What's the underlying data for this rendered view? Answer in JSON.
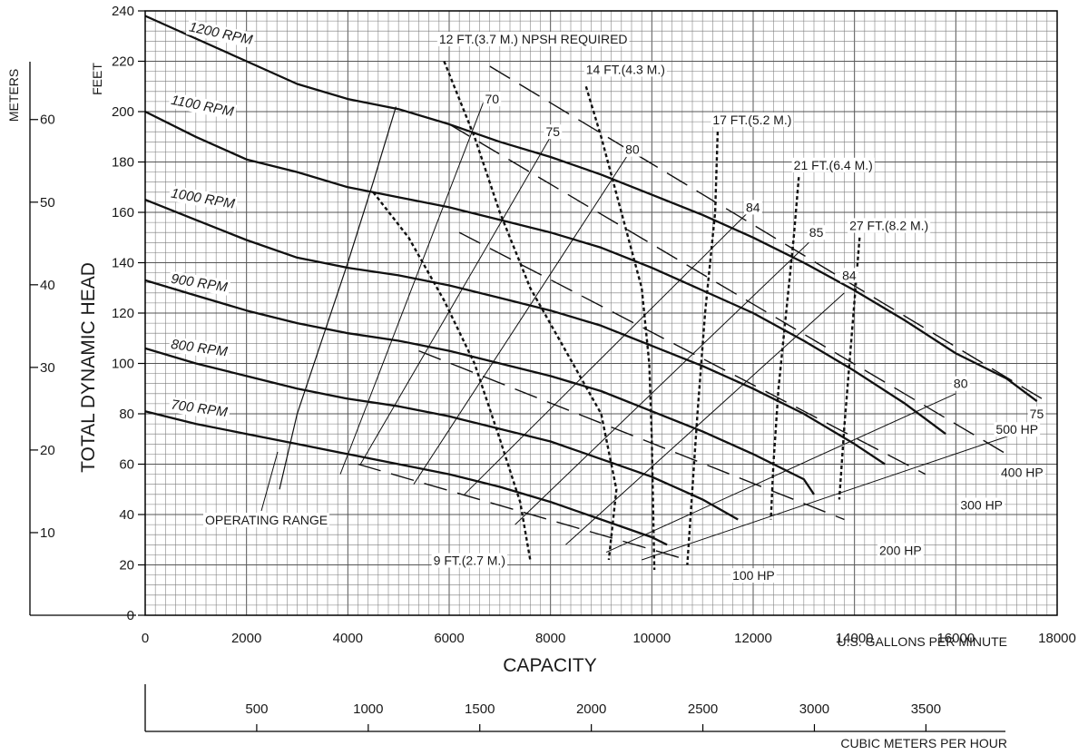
{
  "chart_data": {
    "type": "line",
    "x_axis": {
      "label": "CAPACITY",
      "unit_label": "U.S. GALLONS PER MINUTE",
      "range": [
        0,
        18000
      ],
      "ticks": [
        0,
        2000,
        4000,
        6000,
        8000,
        10000,
        12000,
        14000,
        16000,
        18000
      ]
    },
    "x2_axis": {
      "unit_label": "CUBIC METERS PER HOUR",
      "ticks": [
        500,
        1000,
        1500,
        2000,
        2500,
        3000,
        3500
      ]
    },
    "y_axis": {
      "label": "TOTAL DYNAMIC HEAD",
      "unit_label": "FEET",
      "range": [
        0,
        240
      ],
      "ticks": [
        0,
        20,
        40,
        60,
        80,
        100,
        120,
        140,
        160,
        180,
        200,
        220,
        240
      ]
    },
    "y2_axis": {
      "unit_label": "METERS",
      "ticks": [
        10,
        20,
        30,
        40,
        50,
        60
      ]
    },
    "grid": true,
    "speed_curves": [
      {
        "name": "1200 RPM",
        "points": [
          [
            0,
            238
          ],
          [
            1000,
            229
          ],
          [
            2000,
            220
          ],
          [
            3000,
            211
          ],
          [
            4000,
            205
          ],
          [
            5000,
            201
          ],
          [
            6000,
            195
          ],
          [
            7000,
            188
          ],
          [
            8000,
            182
          ],
          [
            9000,
            175
          ],
          [
            10000,
            167
          ],
          [
            11000,
            159
          ],
          [
            12000,
            150
          ],
          [
            13000,
            140
          ],
          [
            14000,
            129
          ],
          [
            15000,
            117
          ],
          [
            16000,
            104
          ],
          [
            17000,
            94
          ],
          [
            17600,
            85
          ]
        ]
      },
      {
        "name": "1100 RPM",
        "points": [
          [
            0,
            200
          ],
          [
            1000,
            190
          ],
          [
            2000,
            181
          ],
          [
            3000,
            176
          ],
          [
            4000,
            170
          ],
          [
            5000,
            166
          ],
          [
            6000,
            162
          ],
          [
            7000,
            157
          ],
          [
            8000,
            152
          ],
          [
            9000,
            146
          ],
          [
            10000,
            138
          ],
          [
            11000,
            129
          ],
          [
            12000,
            120
          ],
          [
            13000,
            109
          ],
          [
            14000,
            97
          ],
          [
            15000,
            84
          ],
          [
            15800,
            72
          ]
        ]
      },
      {
        "name": "1000 RPM",
        "points": [
          [
            0,
            165
          ],
          [
            1000,
            157
          ],
          [
            2000,
            149
          ],
          [
            3000,
            142
          ],
          [
            4000,
            138
          ],
          [
            5000,
            135
          ],
          [
            6000,
            131
          ],
          [
            7000,
            126
          ],
          [
            8000,
            121
          ],
          [
            9000,
            115
          ],
          [
            10000,
            107
          ],
          [
            11000,
            99
          ],
          [
            12000,
            90
          ],
          [
            13000,
            80
          ],
          [
            14000,
            68
          ],
          [
            14600,
            60
          ]
        ]
      },
      {
        "name": "900 RPM",
        "points": [
          [
            0,
            133
          ],
          [
            1000,
            127
          ],
          [
            2000,
            121
          ],
          [
            3000,
            116
          ],
          [
            4000,
            112
          ],
          [
            5000,
            109
          ],
          [
            6000,
            105
          ],
          [
            7000,
            100
          ],
          [
            8000,
            95
          ],
          [
            9000,
            89
          ],
          [
            10000,
            81
          ],
          [
            11000,
            73
          ],
          [
            12000,
            64
          ],
          [
            13000,
            54
          ],
          [
            13200,
            48
          ]
        ]
      },
      {
        "name": "800 RPM",
        "points": [
          [
            0,
            106
          ],
          [
            1000,
            100
          ],
          [
            2000,
            95
          ],
          [
            3000,
            90
          ],
          [
            4000,
            86
          ],
          [
            5000,
            83
          ],
          [
            6000,
            79
          ],
          [
            7000,
            74
          ],
          [
            8000,
            69
          ],
          [
            9000,
            62
          ],
          [
            10000,
            55
          ],
          [
            11000,
            46
          ],
          [
            11700,
            38
          ]
        ]
      },
      {
        "name": "700 RPM",
        "points": [
          [
            0,
            81
          ],
          [
            1000,
            76
          ],
          [
            2000,
            72
          ],
          [
            3000,
            68
          ],
          [
            4000,
            64
          ],
          [
            5000,
            60
          ],
          [
            6000,
            56
          ],
          [
            7000,
            51
          ],
          [
            8000,
            45
          ],
          [
            9000,
            38
          ],
          [
            10000,
            31
          ],
          [
            10300,
            28
          ]
        ]
      }
    ],
    "operating_range": {
      "label": "OPERATING RANGE",
      "points": [
        [
          2650,
          50
        ],
        [
          3000,
          80
        ],
        [
          3500,
          110
        ],
        [
          4000,
          140
        ],
        [
          4500,
          172
        ],
        [
          4950,
          202
        ]
      ]
    },
    "efficiency_lines": [
      {
        "label": "70",
        "points": [
          [
            3850,
            56
          ],
          [
            6700,
            205
          ]
        ]
      },
      {
        "label": "75",
        "points": [
          [
            4250,
            60
          ],
          [
            8000,
            190
          ]
        ]
      },
      {
        "label": "80",
        "points": [
          [
            5300,
            52
          ],
          [
            9500,
            182
          ]
        ]
      },
      {
        "label": "84",
        "points": [
          [
            6300,
            48
          ],
          [
            11900,
            160
          ]
        ]
      },
      {
        "label": "85",
        "points": [
          [
            7300,
            36
          ],
          [
            13100,
            148
          ]
        ]
      },
      {
        "label": "84",
        "points": [
          [
            8300,
            28
          ],
          [
            13800,
            128
          ]
        ]
      },
      {
        "label": "80",
        "points": [
          [
            9100,
            25
          ],
          [
            16000,
            88
          ]
        ]
      },
      {
        "label": "75",
        "points": [
          [
            9800,
            22
          ],
          [
            17600,
            75
          ]
        ]
      }
    ],
    "npsh_lines": [
      {
        "label": "9 FT.(2.7 M.)",
        "points": [
          [
            4500,
            168
          ],
          [
            5200,
            150
          ],
          [
            5900,
            125
          ],
          [
            6500,
            100
          ],
          [
            7000,
            70
          ],
          [
            7400,
            45
          ],
          [
            7600,
            22
          ]
        ]
      },
      {
        "label": "12 FT.(3.7 M.) NPSH REQUIRED",
        "points": [
          [
            5900,
            220
          ],
          [
            6500,
            190
          ],
          [
            7000,
            160
          ],
          [
            7600,
            130
          ],
          [
            8300,
            105
          ],
          [
            9000,
            80
          ],
          [
            9300,
            50
          ],
          [
            9150,
            22
          ]
        ]
      },
      {
        "label": "14 FT.(4.3 M.)",
        "points": [
          [
            8700,
            210
          ],
          [
            9000,
            190
          ],
          [
            9400,
            160
          ],
          [
            9800,
            130
          ],
          [
            9950,
            100
          ],
          [
            10000,
            70
          ],
          [
            10050,
            18
          ]
        ]
      },
      {
        "label": "17 FT.(5.2 M.)",
        "points": [
          [
            11300,
            192
          ],
          [
            11250,
            160
          ],
          [
            11050,
            120
          ],
          [
            10900,
            80
          ],
          [
            10800,
            50
          ],
          [
            10700,
            20
          ]
        ]
      },
      {
        "label": "21 FT.(6.4 M.)",
        "points": [
          [
            12900,
            174
          ],
          [
            12800,
            150
          ],
          [
            12650,
            120
          ],
          [
            12500,
            90
          ],
          [
            12400,
            60
          ],
          [
            12350,
            38
          ]
        ]
      },
      {
        "label": "27 FT.(8.2 M.)",
        "points": [
          [
            14100,
            150
          ],
          [
            14000,
            125
          ],
          [
            13900,
            100
          ],
          [
            13800,
            75
          ],
          [
            13700,
            46
          ]
        ]
      }
    ],
    "power_lines": [
      {
        "label": "100 HP",
        "points": [
          [
            4200,
            60
          ],
          [
            10700,
            22
          ]
        ]
      },
      {
        "label": "200 HP",
        "points": [
          [
            5400,
            105
          ],
          [
            13800,
            38
          ]
        ]
      },
      {
        "label": "300 HP",
        "points": [
          [
            6200,
            152
          ],
          [
            15400,
            56
          ]
        ]
      },
      {
        "label": "400 HP",
        "points": [
          [
            6000,
            195
          ],
          [
            17000,
            64
          ]
        ]
      },
      {
        "label": "500 HP",
        "points": [
          [
            6800,
            218
          ],
          [
            17700,
            86
          ]
        ]
      }
    ]
  }
}
